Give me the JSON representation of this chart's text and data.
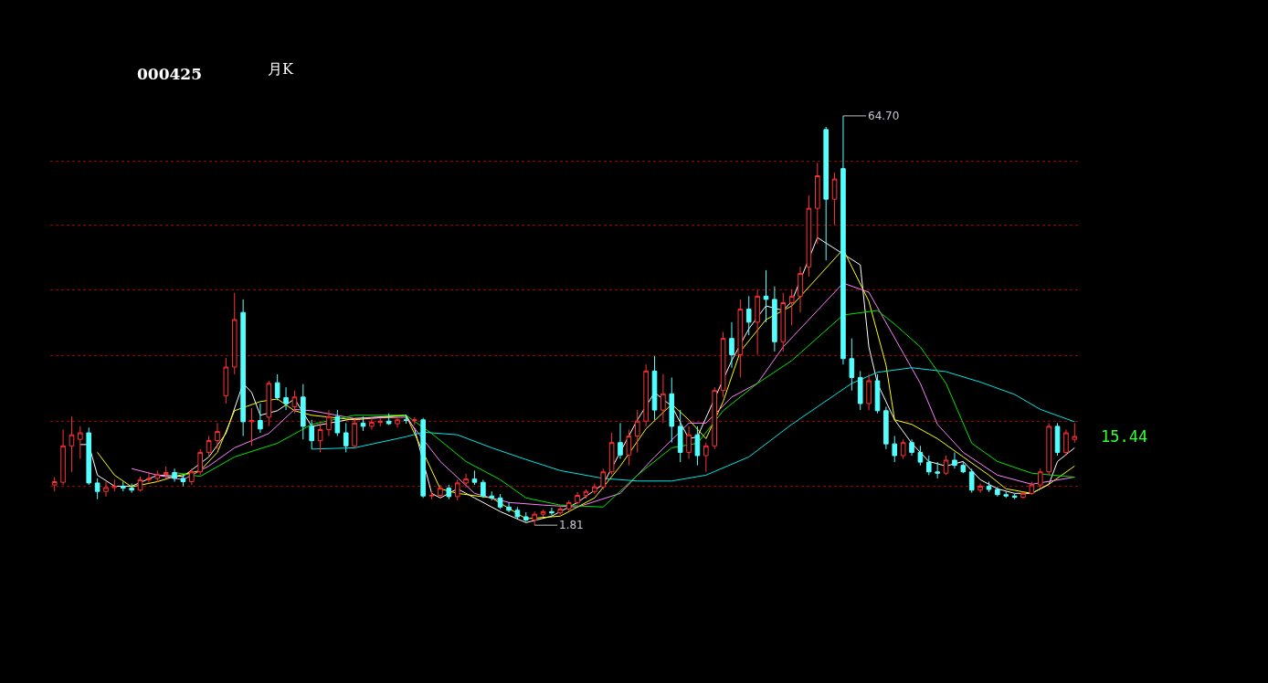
{
  "chart_data": {
    "type": "candlestick",
    "title": "000425",
    "subtitle": "月K",
    "categories": [
      null,
      null,
      null,
      null,
      null,
      null,
      null,
      null,
      null,
      null,
      null,
      null,
      null,
      null,
      null,
      null,
      null,
      null,
      null,
      null,
      null,
      null,
      null,
      null,
      null,
      null,
      null,
      null,
      null,
      null,
      null,
      null,
      null,
      null,
      null,
      null,
      null,
      null,
      null,
      null,
      null,
      null,
      null,
      null,
      null,
      null,
      null,
      null,
      null,
      null,
      null,
      null,
      null,
      null,
      null,
      null,
      null,
      null,
      null,
      null,
      null,
      null,
      null,
      null,
      null,
      null,
      null,
      null,
      null,
      null,
      null,
      null,
      null,
      null,
      null,
      null,
      null,
      null,
      null,
      null,
      null,
      null,
      null,
      null,
      null,
      null,
      null,
      null,
      null,
      null,
      null,
      null,
      null,
      null,
      null,
      null,
      null,
      null,
      null,
      null,
      null,
      null,
      null,
      null,
      null,
      null,
      null,
      null,
      null,
      null,
      null,
      null,
      null,
      null,
      null,
      null,
      null,
      null,
      null,
      null
    ],
    "ohlc": [
      [
        8.0,
        9.2,
        7.0,
        8.5
      ],
      [
        8.4,
        16.5,
        8.0,
        14.0
      ],
      [
        14.0,
        18.5,
        10.0,
        15.7
      ],
      [
        15.0,
        17.0,
        12.0,
        16.0
      ],
      [
        16.0,
        16.8,
        8.0,
        8.3
      ],
      [
        8.3,
        9.0,
        5.8,
        7.0
      ],
      [
        7.0,
        8.5,
        6.2,
        7.6
      ],
      [
        7.6,
        8.8,
        7.0,
        7.8
      ],
      [
        7.8,
        8.5,
        7.0,
        7.5
      ],
      [
        7.5,
        8.2,
        6.8,
        7.2
      ],
      [
        7.2,
        9.3,
        7.0,
        8.8
      ],
      [
        8.8,
        10.0,
        8.2,
        9.0
      ],
      [
        9.0,
        10.2,
        8.4,
        9.6
      ],
      [
        9.6,
        10.8,
        9.0,
        9.9
      ],
      [
        9.9,
        10.5,
        8.5,
        9.0
      ],
      [
        9.0,
        9.6,
        7.8,
        8.5
      ],
      [
        8.5,
        10.5,
        8.0,
        10.0
      ],
      [
        10.0,
        13.5,
        9.5,
        13.0
      ],
      [
        13.0,
        15.5,
        12.5,
        14.8
      ],
      [
        14.8,
        17.5,
        13.5,
        16.2
      ],
      [
        21.7,
        27.5,
        20.5,
        26.1
      ],
      [
        26.1,
        37.5,
        25.0,
        33.4
      ],
      [
        34.5,
        36.5,
        15.5,
        17.7
      ],
      [
        17.7,
        19.8,
        14.0,
        17.9
      ],
      [
        17.9,
        20.5,
        16.0,
        16.6
      ],
      [
        18.4,
        24.0,
        17.0,
        23.6
      ],
      [
        23.7,
        25.0,
        21.0,
        21.4
      ],
      [
        21.4,
        23.0,
        19.5,
        20.5
      ],
      [
        20.0,
        22.5,
        19.0,
        21.5
      ],
      [
        21.5,
        23.5,
        15.0,
        17.0
      ],
      [
        17.0,
        18.0,
        13.5,
        14.8
      ],
      [
        14.8,
        17.5,
        13.0,
        16.5
      ],
      [
        16.5,
        19.5,
        15.5,
        18.5
      ],
      [
        18.5,
        19.5,
        15.5,
        16.0
      ],
      [
        16.0,
        17.5,
        13.0,
        14.0
      ],
      [
        14.0,
        18.0,
        13.8,
        17.5
      ],
      [
        17.5,
        18.5,
        16.3,
        17.0
      ],
      [
        17.0,
        18.3,
        16.5,
        17.6
      ],
      [
        17.6,
        18.3,
        17.0,
        17.8
      ],
      [
        17.8,
        19.0,
        17.2,
        17.4
      ],
      [
        17.4,
        18.5,
        16.8,
        18.0
      ],
      [
        18.0,
        18.8,
        17.4,
        17.9
      ],
      [
        17.9,
        18.4,
        17.2,
        18.0
      ],
      [
        18.0,
        18.3,
        6.0,
        6.3
      ],
      [
        6.3,
        7.0,
        5.8,
        6.4
      ],
      [
        6.4,
        8.0,
        6.0,
        7.5
      ],
      [
        7.5,
        8.0,
        5.8,
        6.2
      ],
      [
        6.2,
        8.8,
        5.6,
        8.3
      ],
      [
        8.3,
        9.7,
        7.6,
        8.9
      ],
      [
        8.9,
        10.2,
        8.0,
        8.4
      ],
      [
        8.4,
        8.8,
        6.0,
        6.3
      ],
      [
        6.3,
        7.0,
        5.6,
        6.0
      ],
      [
        6.0,
        6.6,
        4.3,
        4.6
      ],
      [
        4.6,
        5.3,
        3.8,
        4.1
      ],
      [
        4.1,
        4.6,
        2.8,
        3.1
      ],
      [
        3.1,
        3.8,
        2.3,
        2.6
      ],
      [
        2.6,
        3.9,
        1.81,
        3.5
      ],
      [
        3.5,
        4.2,
        3.1,
        3.9
      ],
      [
        3.9,
        4.5,
        3.3,
        3.7
      ],
      [
        3.7,
        4.6,
        3.4,
        4.3
      ],
      [
        4.3,
        5.6,
        4.0,
        5.3
      ],
      [
        5.3,
        6.9,
        5.0,
        6.4
      ],
      [
        6.4,
        7.3,
        5.9,
        7.0
      ],
      [
        7.0,
        8.2,
        6.6,
        7.7
      ],
      [
        7.7,
        10.5,
        7.3,
        10.0
      ],
      [
        10.0,
        16.0,
        9.6,
        14.5
      ],
      [
        14.5,
        17.5,
        12.0,
        12.6
      ],
      [
        12.6,
        16.5,
        11.0,
        15.5
      ],
      [
        15.5,
        19.5,
        13.0,
        17.8
      ],
      [
        17.8,
        26.5,
        17.0,
        25.5
      ],
      [
        25.5,
        27.8,
        18.0,
        19.5
      ],
      [
        19.5,
        25.0,
        17.5,
        22.0
      ],
      [
        22.0,
        24.5,
        14.5,
        17.0
      ],
      [
        17.0,
        19.5,
        11.5,
        13.0
      ],
      [
        13.0,
        17.0,
        12.0,
        15.7
      ],
      [
        15.7,
        17.0,
        11.0,
        12.5
      ],
      [
        12.5,
        14.5,
        10.0,
        14.0
      ],
      [
        14.0,
        23.0,
        13.5,
        22.5
      ],
      [
        22.5,
        31.5,
        21.5,
        30.5
      ],
      [
        30.5,
        33.0,
        26.0,
        28.0
      ],
      [
        28.0,
        36.5,
        24.5,
        35.0
      ],
      [
        35.0,
        37.0,
        31.0,
        33.0
      ],
      [
        33.0,
        38.0,
        28.0,
        37.0
      ],
      [
        37.0,
        41.0,
        33.0,
        36.5
      ],
      [
        36.5,
        38.5,
        28.5,
        30.0
      ],
      [
        30.0,
        37.5,
        28.5,
        36.0
      ],
      [
        36.0,
        38.0,
        32.5,
        37.0
      ],
      [
        37.0,
        41.5,
        34.5,
        40.5
      ],
      [
        41.5,
        52.5,
        40.0,
        50.5
      ],
      [
        50.5,
        57.5,
        45.0,
        55.5
      ],
      [
        62.6,
        63.0,
        42.5,
        51.9
      ],
      [
        51.9,
        56.0,
        48.0,
        55.0
      ],
      [
        56.6,
        64.7,
        26.5,
        27.4
      ],
      [
        27.4,
        30.5,
        22.5,
        24.5
      ],
      [
        24.5,
        25.5,
        19.5,
        20.5
      ],
      [
        20.5,
        25.0,
        19.5,
        24.0
      ],
      [
        24.0,
        25.0,
        19.0,
        19.4
      ],
      [
        19.4,
        20.0,
        13.5,
        14.3
      ],
      [
        14.3,
        15.5,
        11.5,
        12.5
      ],
      [
        12.5,
        15.0,
        12.0,
        14.5
      ],
      [
        14.5,
        15.0,
        12.5,
        13.0
      ],
      [
        13.0,
        14.0,
        11.0,
        11.5
      ],
      [
        11.5,
        12.5,
        9.5,
        10.0
      ],
      [
        10.0,
        11.5,
        9.0,
        9.8
      ],
      [
        9.8,
        12.5,
        9.5,
        11.8
      ],
      [
        11.8,
        13.0,
        10.5,
        11.0
      ],
      [
        11.0,
        11.5,
        9.8,
        10.0
      ],
      [
        10.0,
        10.5,
        6.8,
        7.2
      ],
      [
        7.2,
        8.2,
        6.8,
        7.8
      ],
      [
        7.8,
        8.5,
        6.9,
        7.3
      ],
      [
        7.3,
        7.7,
        6.2,
        6.5
      ],
      [
        6.5,
        7.0,
        6.0,
        6.3
      ],
      [
        6.3,
        6.6,
        5.8,
        6.1
      ],
      [
        6.1,
        7.0,
        5.9,
        6.7
      ],
      [
        6.7,
        8.5,
        6.5,
        8.0
      ],
      [
        8.0,
        10.5,
        7.5,
        10.0
      ],
      [
        10.0,
        17.5,
        9.5,
        17.0
      ],
      [
        17.0,
        17.5,
        12.5,
        13.0
      ],
      [
        13.0,
        16.5,
        12.5,
        16.0
      ],
      [
        15.0,
        17.5,
        14.5,
        15.44
      ]
    ],
    "series": [
      {
        "type": "line",
        "color": "#ffffff",
        "values": [
          null,
          null,
          null,
          14.2,
          14.2,
          9.5,
          null,
          7.8,
          null,
          7.8,
          null,
          null,
          9.5,
          null,
          null,
          9.3,
          null,
          null,
          12.3,
          null,
          15.9,
          null,
          23.6,
          22.2,
          18.7,
          null,
          19.4,
          null,
          21.2,
          null,
          17.0,
          null,
          null,
          null,
          null,
          18.2,
          null,
          null,
          null,
          null,
          null,
          18.7,
          16.6,
          null,
          6.7,
          6.0,
          null,
          7.4,
          null,
          6.0,
          null,
          null,
          3.9,
          null,
          null,
          2.2,
          null,
          null,
          3.2,
          null,
          null,
          5.3,
          null,
          null,
          8.1,
          null,
          null,
          null,
          18.0,
          null,
          22.2,
          null,
          20.1,
          null,
          15.1,
          15.4,
          null,
          null,
          null,
          27.1,
          null,
          32.0,
          null,
          35.5,
          null,
          34.8,
          36.2,
          null,
          null,
          46.0,
          null,
          null,
          null,
          null,
          41.8,
          29.2,
          23.6,
          null,
          18.0,
          null,
          14.4,
          null,
          11.6,
          null,
          10.9,
          null,
          11.6,
          null,
          8.8,
          null,
          7.4,
          null,
          6.7,
          null,
          6.7,
          null,
          8.1,
          11.6,
          null,
          13.7
        ]
      },
      {
        "type": "line",
        "color": "#ffff00",
        "values": [
          null,
          null,
          null,
          null,
          null,
          13.0,
          null,
          9.5,
          null,
          7.7,
          null,
          null,
          8.5,
          null,
          9.3,
          null,
          null,
          10.2,
          null,
          13.0,
          null,
          19.4,
          null,
          null,
          20.8,
          null,
          21.2,
          null,
          19.4,
          null,
          18.7,
          null,
          null,
          null,
          null,
          18.0,
          null,
          null,
          null,
          null,
          null,
          18.7,
          null,
          null,
          null,
          7.4,
          null,
          6.7,
          null,
          null,
          null,
          6.0,
          null,
          null,
          null,
          2.8,
          null,
          null,
          null,
          3.2,
          null,
          null,
          null,
          6.0,
          null,
          null,
          10.9,
          null,
          null,
          16.6,
          null,
          null,
          20.4,
          null,
          18.0,
          null,
          15.1,
          null,
          20.8,
          null,
          28.5,
          null,
          null,
          33.4,
          null,
          null,
          35.5,
          null,
          null,
          null,
          null,
          null,
          44.2,
          null,
          null,
          36.2,
          null,
          26.4,
          18.0,
          null,
          17.3,
          null,
          null,
          15.1,
          null,
          null,
          12.3,
          null,
          null,
          9.5,
          null,
          7.4,
          null,
          null,
          6.7,
          null,
          8.1,
          null,
          null,
          10.9
        ]
      },
      {
        "type": "line",
        "color": "#ff80ff",
        "values": [
          null,
          null,
          null,
          null,
          null,
          null,
          null,
          null,
          null,
          10.5,
          null,
          null,
          9.5,
          null,
          null,
          8.8,
          null,
          null,
          10.9,
          null,
          null,
          13.7,
          null,
          null,
          null,
          15.9,
          null,
          null,
          19.6,
          null,
          19.4,
          null,
          null,
          null,
          null,
          18.2,
          null,
          null,
          null,
          null,
          null,
          18.4,
          null,
          null,
          null,
          11.6,
          null,
          null,
          null,
          6.7,
          null,
          null,
          null,
          5.3,
          null,
          null,
          null,
          4.9,
          null,
          null,
          null,
          4.6,
          null,
          null,
          null,
          null,
          6.7,
          null,
          null,
          null,
          12.3,
          null,
          null,
          null,
          17.5,
          null,
          17.5,
          null,
          null,
          21.5,
          null,
          null,
          23.6,
          null,
          null,
          29.2,
          null,
          null,
          null,
          null,
          null,
          null,
          39.0,
          null,
          null,
          37.6,
          null,
          null,
          30.6,
          null,
          null,
          23.6,
          null,
          17.3,
          null,
          null,
          13.0,
          null,
          null,
          null,
          9.5,
          null,
          null,
          null,
          8.1,
          null,
          null,
          null,
          null,
          9.2
        ]
      },
      {
        "type": "line",
        "color": "#00e600",
        "values": [
          null,
          null,
          null,
          null,
          null,
          null,
          null,
          null,
          null,
          null,
          null,
          null,
          null,
          null,
          9.9,
          null,
          null,
          9.3,
          null,
          null,
          null,
          12.3,
          null,
          null,
          null,
          null,
          14.4,
          null,
          null,
          null,
          17.3,
          null,
          null,
          null,
          null,
          18.7,
          null,
          null,
          null,
          null,
          null,
          18.7,
          null,
          null,
          15.9,
          null,
          null,
          null,
          11.6,
          null,
          null,
          null,
          8.8,
          null,
          null,
          6.0,
          null,
          null,
          null,
          4.9,
          null,
          null,
          null,
          null,
          4.6,
          null,
          null,
          null,
          9.5,
          null,
          null,
          null,
          13.7,
          null,
          null,
          14.4,
          null,
          null,
          19.4,
          null,
          null,
          null,
          23.6,
          null,
          null,
          null,
          27.1,
          null,
          null,
          null,
          null,
          null,
          34.1,
          null,
          null,
          null,
          34.8,
          null,
          32.7,
          null,
          null,
          29.2,
          null,
          null,
          23.6,
          null,
          null,
          14.4,
          null,
          null,
          11.6,
          null,
          null,
          null,
          9.8,
          null,
          null,
          null,
          null,
          9.2
        ]
      },
      {
        "type": "line",
        "color": "#00e5e5",
        "values": [
          null,
          null,
          null,
          null,
          null,
          null,
          null,
          null,
          null,
          null,
          null,
          null,
          null,
          null,
          null,
          null,
          null,
          null,
          null,
          null,
          null,
          null,
          null,
          null,
          null,
          null,
          null,
          null,
          null,
          null,
          13.5,
          null,
          null,
          null,
          null,
          13.7,
          null,
          null,
          null,
          null,
          null,
          15.4,
          null,
          16.1,
          null,
          null,
          null,
          15.7,
          null,
          null,
          null,
          13.7,
          null,
          null,
          null,
          11.9,
          null,
          null,
          null,
          10.2,
          null,
          null,
          null,
          null,
          9.0,
          null,
          null,
          null,
          8.6,
          null,
          null,
          null,
          8.6,
          null,
          null,
          null,
          9.5,
          null,
          null,
          null,
          null,
          12.3,
          null,
          null,
          null,
          null,
          17.3,
          null,
          null,
          null,
          null,
          null,
          null,
          23.6,
          null,
          null,
          25.3,
          null,
          null,
          null,
          26.0,
          null,
          null,
          null,
          25.4,
          null,
          null,
          null,
          23.8,
          null,
          null,
          null,
          21.9,
          null,
          null,
          19.6,
          null,
          null,
          null,
          17.7
        ]
      }
    ],
    "yticks": [
      {
        "value": 7.85,
        "label": null
      },
      {
        "value": 17.8,
        "label": null
      },
      {
        "value": 27.8,
        "label": null
      },
      {
        "value": 37.9,
        "label": null
      },
      {
        "value": 47.9,
        "label": null
      },
      {
        "value": 57.7,
        "label": null
      }
    ],
    "grid": "y",
    "annotations": [
      "64.70",
      "1.81",
      "15.44"
    ]
  }
}
